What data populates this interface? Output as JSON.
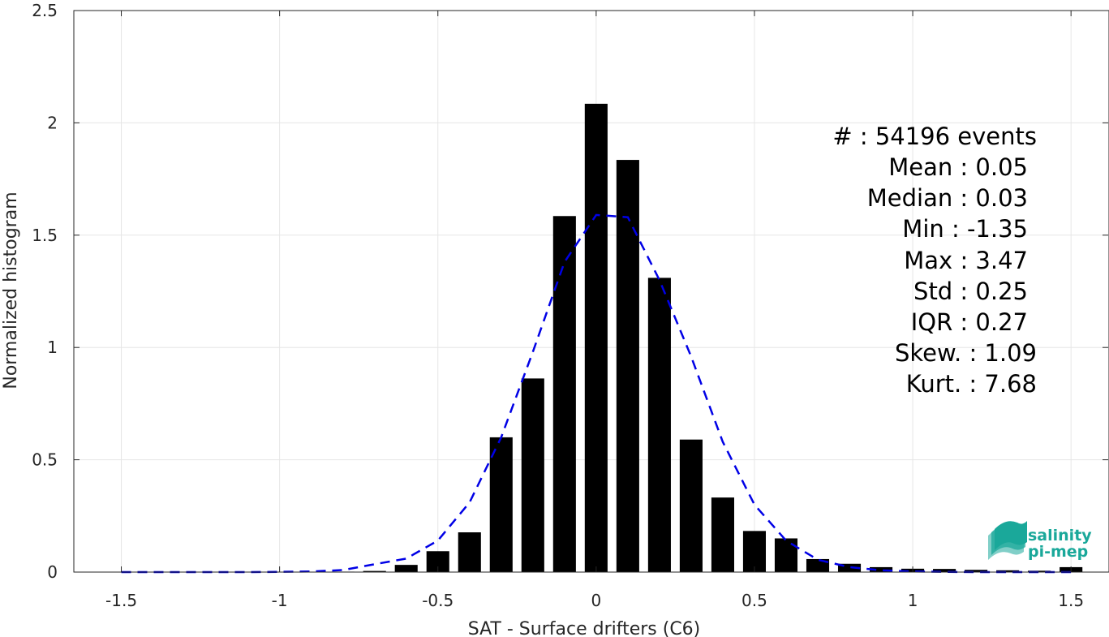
{
  "chart_data": {
    "type": "bar",
    "xlabel": "SAT - Surface drifters (C6)",
    "ylabel": "Normalized histogram",
    "xlim": [
      -1.5,
      1.5
    ],
    "ylim": [
      0,
      2.5
    ],
    "grid": true,
    "x_ticks": [
      "-1.5",
      "-1",
      "-0.5",
      "0",
      "0.5",
      "1",
      "1.5"
    ],
    "y_ticks": [
      "0",
      "0.5",
      "1",
      "1.5",
      "2",
      "2.5"
    ],
    "x_tick_values": [
      -1.5,
      -1,
      -0.5,
      0,
      0.5,
      1,
      1.5
    ],
    "y_tick_values": [
      0,
      0.5,
      1,
      1.5,
      2,
      2.5
    ],
    "bar_color": "#000000",
    "histogram": {
      "bin_centers": [
        -1.4,
        -1.3,
        -1.2,
        -1.1,
        -1.0,
        -0.9,
        -0.8,
        -0.7,
        -0.6,
        -0.5,
        -0.4,
        -0.3,
        -0.2,
        -0.1,
        0.0,
        0.1,
        0.2,
        0.3,
        0.4,
        0.5,
        0.6,
        0.7,
        0.8,
        0.9,
        1.0,
        1.1,
        1.2,
        1.3,
        1.4,
        1.5
      ],
      "values": [
        0,
        0,
        0,
        0,
        0,
        0,
        0.002,
        0.005,
        0.032,
        0.093,
        0.177,
        0.6,
        0.862,
        1.585,
        2.085,
        1.835,
        1.31,
        0.59,
        0.332,
        0.183,
        0.15,
        0.058,
        0.037,
        0.022,
        0.015,
        0.014,
        0.01,
        0.008,
        0.006,
        0.022
      ]
    },
    "fit_curve": {
      "color": "#0000e6",
      "style": "dashed",
      "x": [
        -1.5,
        -1.4,
        -1.3,
        -1.2,
        -1.1,
        -1.0,
        -0.9,
        -0.8,
        -0.7,
        -0.6,
        -0.5,
        -0.4,
        -0.3,
        -0.2,
        -0.1,
        0.0,
        0.1,
        0.2,
        0.3,
        0.4,
        0.5,
        0.6,
        0.7,
        0.8,
        0.9,
        1.0,
        1.1,
        1.2,
        1.3,
        1.4,
        1.5
      ],
      "y": [
        0.0,
        0.0,
        0.0,
        0.0,
        0.0,
        0.001,
        0.003,
        0.009,
        0.035,
        0.06,
        0.14,
        0.31,
        0.6,
        0.98,
        1.38,
        1.59,
        1.58,
        1.3,
        0.96,
        0.58,
        0.3,
        0.14,
        0.055,
        0.022,
        0.008,
        0.003,
        0.001,
        0.0,
        0.0,
        0.0,
        0.0
      ]
    },
    "annotations": [
      "#  : 54196 events",
      "Mean : 0.05",
      "Median : 0.03",
      "Min : -1.35",
      "Max : 3.47",
      "Std : 0.25",
      "IQR : 0.27",
      "Skew. : 1.09",
      "Kurt. : 7.68"
    ]
  },
  "logo": {
    "line1": "salinity",
    "line2": "pi-mep",
    "color": "#1aa89a"
  }
}
